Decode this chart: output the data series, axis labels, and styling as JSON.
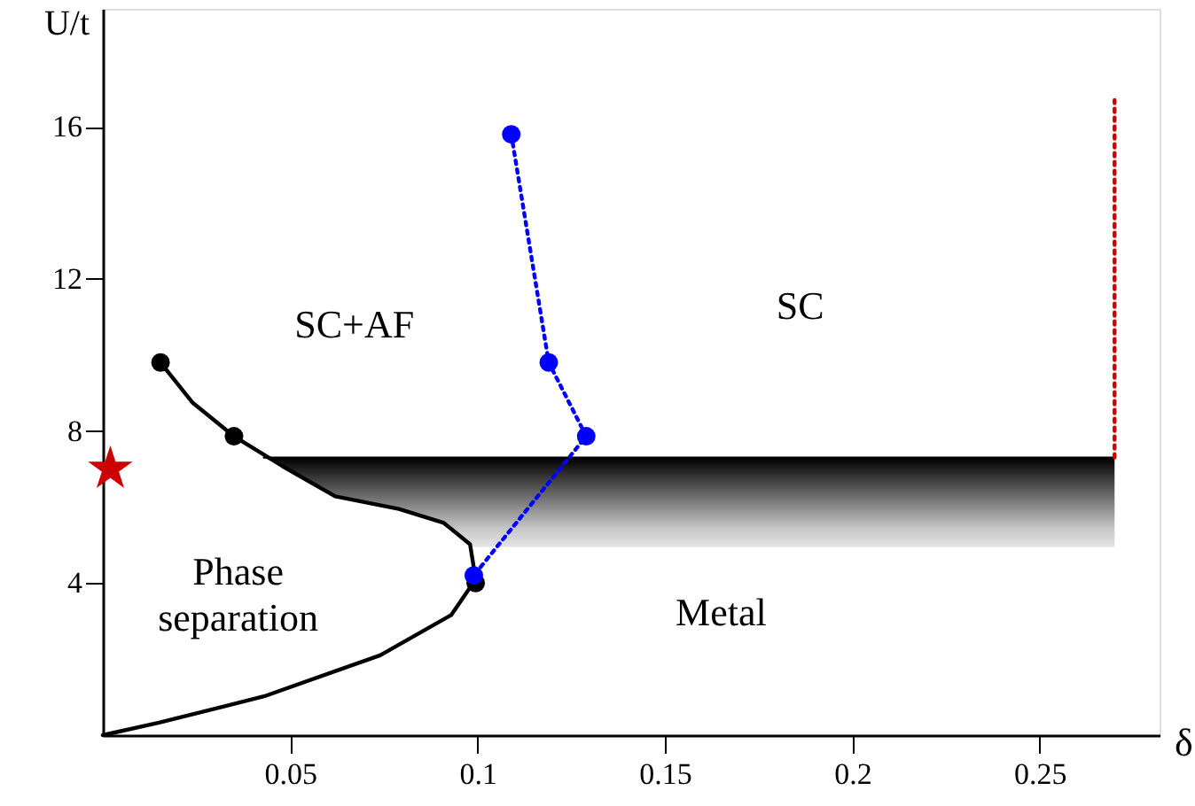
{
  "chart_data": {
    "type": "line",
    "xlabel": "δ",
    "ylabel": "U/t",
    "xlim": [
      0,
      0.282
    ],
    "ylim": [
      0,
      19.1
    ],
    "xticks": [
      0.05,
      0.1,
      0.15,
      0.2,
      0.25
    ],
    "yticks": [
      4,
      8,
      12,
      16
    ],
    "grid": false,
    "series": [
      {
        "color": "#000000",
        "marker": "none",
        "line_style": "solid",
        "x": [
          0.043,
          0.048,
          0.062,
          0.079,
          0.091,
          0.098,
          0.27
        ],
        "values": [
          7.3,
          7.3,
          7.3,
          7.3,
          7.3,
          7.3,
          7.3
        ],
        "lower": [
          7.3,
          7.07,
          6.28,
          5.95,
          5.58,
          4.95,
          4.95
        ],
        "upper": [
          7.3,
          7.3,
          7.3,
          7.3,
          7.3,
          7.3,
          7.3
        ]
      },
      {
        "color": "#000000",
        "marker": "none",
        "line_style": "solid",
        "x": [
          0,
          0.015,
          0.043,
          0.074,
          0.093,
          0.0995,
          0.098,
          0.091,
          0.079,
          0.062,
          0.048,
          0.035,
          0.024,
          0.0154
        ],
        "values": [
          0,
          0.33,
          1.02,
          2.1,
          3.16,
          4.1,
          5.02,
          5.58,
          5.95,
          6.28,
          7.07,
          7.86,
          8.74,
          9.8
        ]
      },
      {
        "type": "scatter",
        "color": "#000000",
        "marker": "circle",
        "x": [
          0.0154,
          0.035,
          0.0995
        ],
        "values": [
          9.8,
          7.86,
          4.0
        ]
      },
      {
        "color": "#0000ff",
        "marker": "circle",
        "line_style": "dotted",
        "x": [
          0.109,
          0.119,
          0.129,
          0.099
        ],
        "values": [
          15.8,
          9.8,
          7.86,
          4.2
        ]
      },
      {
        "color": "#cc0000",
        "marker": "none",
        "line_style": "dotted",
        "x": [
          0.27,
          0.27
        ],
        "values": [
          7.3,
          16.7
        ]
      },
      {
        "type": "scatter",
        "color": "#cc0000",
        "marker": "star",
        "x": [
          0.002
        ],
        "values": [
          7.0
        ]
      }
    ],
    "annotations": [
      "SC+AF",
      "SC",
      "Phase\nseparation",
      "Metal"
    ]
  }
}
